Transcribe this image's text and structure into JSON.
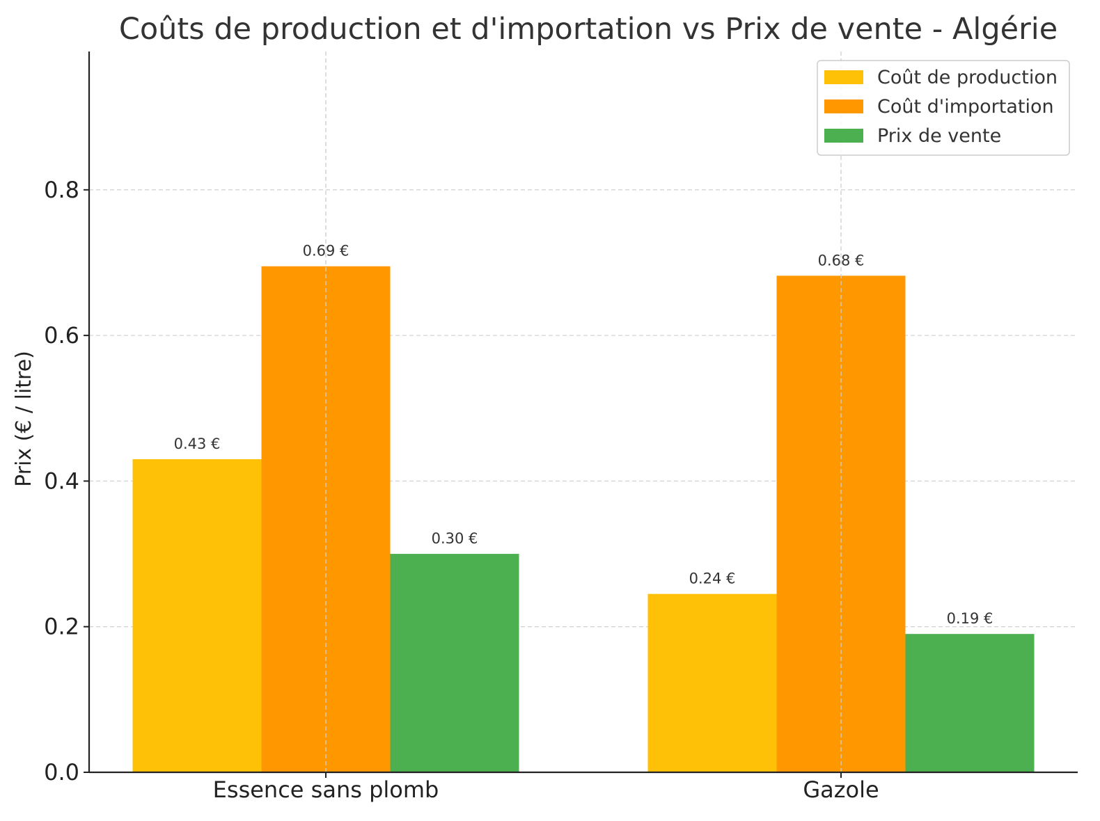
{
  "chart_data": {
    "type": "bar",
    "title": "Coûts de production et d'importation vs Prix de vente - Algérie",
    "xlabel": "",
    "ylabel": "Prix (€ / litre)",
    "categories": [
      "Essence sans plomb",
      "Gazole"
    ],
    "series": [
      {
        "name": "Coût de production",
        "color": "#FFC107",
        "values": [
          0.43,
          0.245
        ],
        "labels": [
          "0.43 €",
          "0.24 €"
        ]
      },
      {
        "name": "Coût d'importation",
        "color": "#FF9800",
        "values": [
          0.695,
          0.682
        ],
        "labels": [
          "0.69 €",
          "0.68 €"
        ]
      },
      {
        "name": "Prix de vente",
        "color": "#4CAF50",
        "values": [
          0.3,
          0.19
        ],
        "labels": [
          "0.30 €",
          "0.19 €"
        ]
      }
    ],
    "ylim": [
      0,
      0.99
    ],
    "yticks": [
      0.0,
      0.2,
      0.4,
      0.6,
      0.8
    ],
    "ytick_labels": [
      "0.0",
      "0.2",
      "0.4",
      "0.6",
      "0.8"
    ],
    "grid": true,
    "legend": "top-right"
  }
}
